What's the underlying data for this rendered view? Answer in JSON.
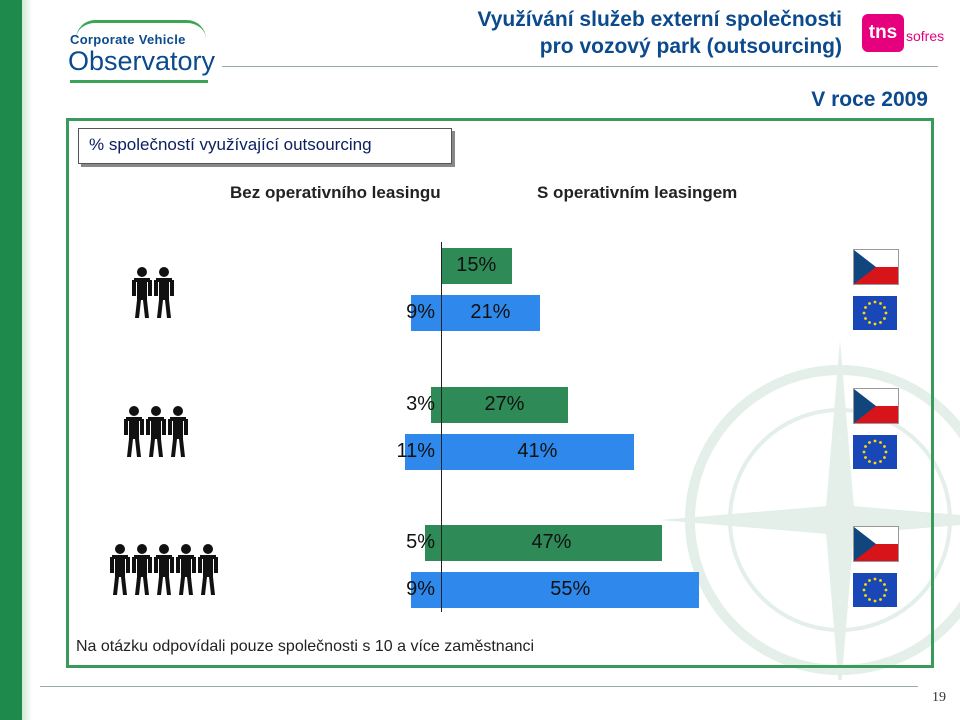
{
  "header": {
    "title_line1": "Využívání služeb externí společnosti",
    "title_line2": "pro vozový park (outsourcing)",
    "logo_line1": "Corporate Vehicle",
    "logo_line2": "Observatory",
    "tns_text": "tns",
    "tns_sofres": "sofres",
    "year_label": "V roce 2009"
  },
  "legend_label": "% společností využívající outsourcing",
  "footnote": "Na otázku odpovídali pouze společnosti s 10 a více zaměstnanci",
  "page_number": "19",
  "colors": {
    "cz_bar": "#2e8b57",
    "eu_bar": "#2f89ec",
    "frame": "#3a9a5c",
    "title": "#0b4a8c"
  },
  "icons": {
    "group_small": "two-people-icon",
    "group_medium": "three-people-icon",
    "group_large": "five-people-icon",
    "cz_flag": "czech-flag-icon",
    "eu_flag": "eu-flag-icon"
  },
  "chart_data": {
    "type": "bar",
    "orientation": "horizontal-diverging",
    "columns": [
      "Bez operativního leasingu",
      "S operativním leasingem"
    ],
    "groups": [
      {
        "icon": "two-people-icon",
        "bars": [
          {
            "region": "CZ",
            "left": null,
            "right": 15,
            "left_label": "",
            "right_label": "15%"
          },
          {
            "region": "EU",
            "left": 9,
            "right": 21,
            "left_label": "9%",
            "right_label": "21%"
          }
        ]
      },
      {
        "icon": "three-people-icon",
        "bars": [
          {
            "region": "CZ",
            "left": 3,
            "right": 27,
            "left_label": "3%",
            "right_label": "27%"
          },
          {
            "region": "EU",
            "left": 11,
            "right": 41,
            "left_label": "11%",
            "right_label": "41%"
          }
        ]
      },
      {
        "icon": "five-people-icon",
        "bars": [
          {
            "region": "CZ",
            "left": 5,
            "right": 47,
            "left_label": "5%",
            "right_label": "47%"
          },
          {
            "region": "EU",
            "left": 9,
            "right": 55,
            "left_label": "9%",
            "right_label": "55%"
          }
        ]
      }
    ]
  }
}
